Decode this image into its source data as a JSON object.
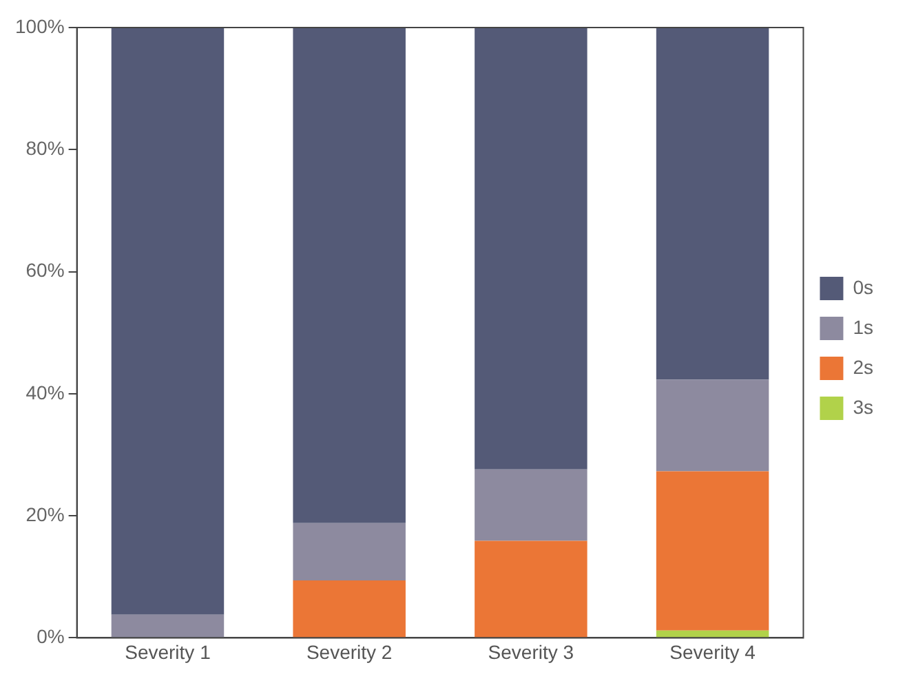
{
  "chart_data": {
    "type": "bar",
    "stacked": true,
    "categories": [
      "Severity 1",
      "Severity 2",
      "Severity 3",
      "Severity 4"
    ],
    "series": [
      {
        "name": "3s",
        "color": "#b1d24a",
        "values": [
          0,
          0,
          0,
          1.2
        ]
      },
      {
        "name": "2s",
        "color": "#eb7636",
        "values": [
          0,
          9.4,
          15.9,
          26.1
        ]
      },
      {
        "name": "1s",
        "color": "#8d8a9f",
        "values": [
          3.8,
          9.4,
          11.7,
          15.0
        ]
      },
      {
        "name": "0s",
        "color": "#545a77",
        "values": [
          96.2,
          81.2,
          72.4,
          57.7
        ]
      }
    ],
    "ylim": [
      0,
      100
    ],
    "yticks": [
      {
        "value": 0,
        "label": "0%"
      },
      {
        "value": 20,
        "label": "20%"
      },
      {
        "value": 40,
        "label": "40%"
      },
      {
        "value": 60,
        "label": "60%"
      },
      {
        "value": 80,
        "label": "80%"
      },
      {
        "value": 100,
        "label": "100%"
      }
    ],
    "grid": false,
    "legend": "right"
  }
}
